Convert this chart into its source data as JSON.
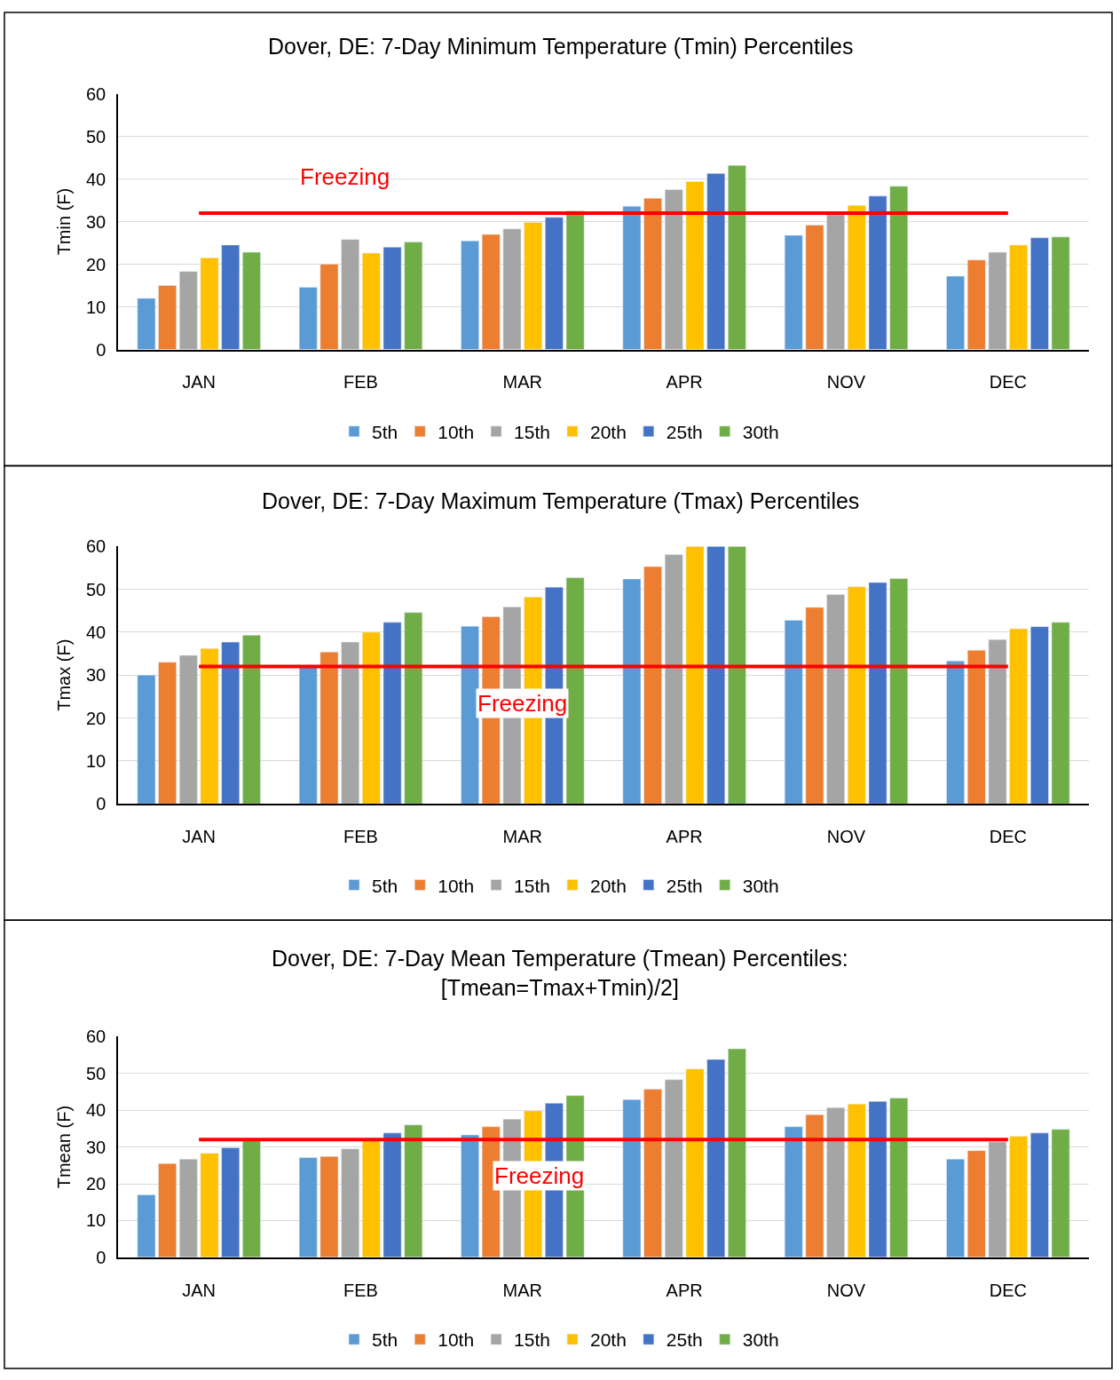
{
  "chart_data": [
    {
      "type": "bar",
      "title": "Dover, DE: 7-Day Minimum Temperature (Tmin) Percentiles",
      "ylabel": "Tmin (F)",
      "categories": [
        "JAN",
        "FEB",
        "MAR",
        "APR",
        "NOV",
        "DEC"
      ],
      "ylim": [
        0,
        60
      ],
      "yticks": [
        0,
        10,
        20,
        30,
        40,
        50,
        60
      ],
      "grid": "y",
      "legend": "bottom",
      "ref_lines": [
        {
          "axis": "y",
          "value": 32,
          "label": "Freezing",
          "color": "#ff0000"
        }
      ],
      "series": [
        {
          "name": "5th",
          "color": "#5b9bd5",
          "values": [
            12,
            14.6,
            25.5,
            33.6,
            26.8,
            17.2
          ]
        },
        {
          "name": "10th",
          "color": "#ed7d31",
          "values": [
            15,
            20,
            27,
            35.5,
            29.2,
            21
          ]
        },
        {
          "name": "15th",
          "color": "#a5a5a5",
          "values": [
            18.3,
            25.8,
            28.3,
            37.5,
            31.6,
            22.8
          ]
        },
        {
          "name": "20th",
          "color": "#ffc000",
          "values": [
            21.5,
            22.6,
            29.8,
            39.4,
            33.8,
            24.5
          ]
        },
        {
          "name": "25th",
          "color": "#4472c4",
          "values": [
            24.5,
            24,
            31,
            41.3,
            36,
            26.2
          ]
        },
        {
          "name": "30th",
          "color": "#70ad47",
          "values": [
            22.8,
            25.2,
            32.5,
            43.2,
            38.3,
            26.4
          ]
        }
      ]
    },
    {
      "type": "bar",
      "title": "Dover, DE: 7-Day Maximum Temperature (Tmax) Percentiles",
      "ylabel": "Tmax (F)",
      "categories": [
        "JAN",
        "FEB",
        "MAR",
        "APR",
        "NOV",
        "DEC"
      ],
      "ylim": [
        0,
        60
      ],
      "yticks": [
        0,
        10,
        20,
        30,
        40,
        50,
        60
      ],
      "grid": "y",
      "legend": "bottom",
      "ref_lines": [
        {
          "axis": "y",
          "value": 32,
          "label": "Freezing",
          "color": "#ff0000"
        }
      ],
      "series": [
        {
          "name": "5th",
          "color": "#5b9bd5",
          "values": [
            30,
            32,
            41.4,
            52.4,
            42.8,
            33.3
          ]
        },
        {
          "name": "10th",
          "color": "#ed7d31",
          "values": [
            33,
            35.4,
            43.6,
            55.3,
            45.8,
            35.8
          ]
        },
        {
          "name": "15th",
          "color": "#a5a5a5",
          "values": [
            34.6,
            37.7,
            45.9,
            58.1,
            48.8,
            38.3
          ]
        },
        {
          "name": "20th",
          "color": "#ffc000",
          "values": [
            36.2,
            40,
            48.2,
            60,
            50.6,
            40.8
          ]
        },
        {
          "name": "25th",
          "color": "#4472c4",
          "values": [
            37.7,
            42.3,
            50.5,
            60,
            51.6,
            41.3
          ]
        },
        {
          "name": "30th",
          "color": "#70ad47",
          "values": [
            39.3,
            44.6,
            52.7,
            60,
            52.5,
            42.3
          ]
        }
      ]
    },
    {
      "type": "bar",
      "title": "Dover, DE: 7-Day Mean Temperature (Tmean) Percentiles:\n[Tmean=Tmax+Tmin)/2]",
      "ylabel": "Tmean (F)",
      "categories": [
        "JAN",
        "FEB",
        "MAR",
        "APR",
        "NOV",
        "DEC"
      ],
      "ylim": [
        0,
        60
      ],
      "yticks": [
        0,
        10,
        20,
        30,
        40,
        50,
        60
      ],
      "grid": "y",
      "legend": "bottom",
      "ref_lines": [
        {
          "axis": "y",
          "value": 32,
          "label": "Freezing",
          "color": "#ff0000"
        }
      ],
      "series": [
        {
          "name": "5th",
          "color": "#5b9bd5",
          "values": [
            17,
            27.1,
            33.3,
            42.9,
            35.5,
            26.7
          ]
        },
        {
          "name": "10th",
          "color": "#ed7d31",
          "values": [
            25.5,
            27.4,
            35.5,
            45.7,
            38.8,
            29
          ]
        },
        {
          "name": "15th",
          "color": "#a5a5a5",
          "values": [
            26.7,
            29.5,
            37.6,
            48.3,
            40.7,
            31.4
          ]
        },
        {
          "name": "20th",
          "color": "#ffc000",
          "values": [
            28.3,
            32,
            39.8,
            51.2,
            41.7,
            32.9
          ]
        },
        {
          "name": "25th",
          "color": "#4472c4",
          "values": [
            29.8,
            33.8,
            41.9,
            53.8,
            42.4,
            33.8
          ]
        },
        {
          "name": "30th",
          "color": "#70ad47",
          "values": [
            32,
            36,
            44,
            56.7,
            43.3,
            34.8
          ]
        }
      ]
    }
  ]
}
